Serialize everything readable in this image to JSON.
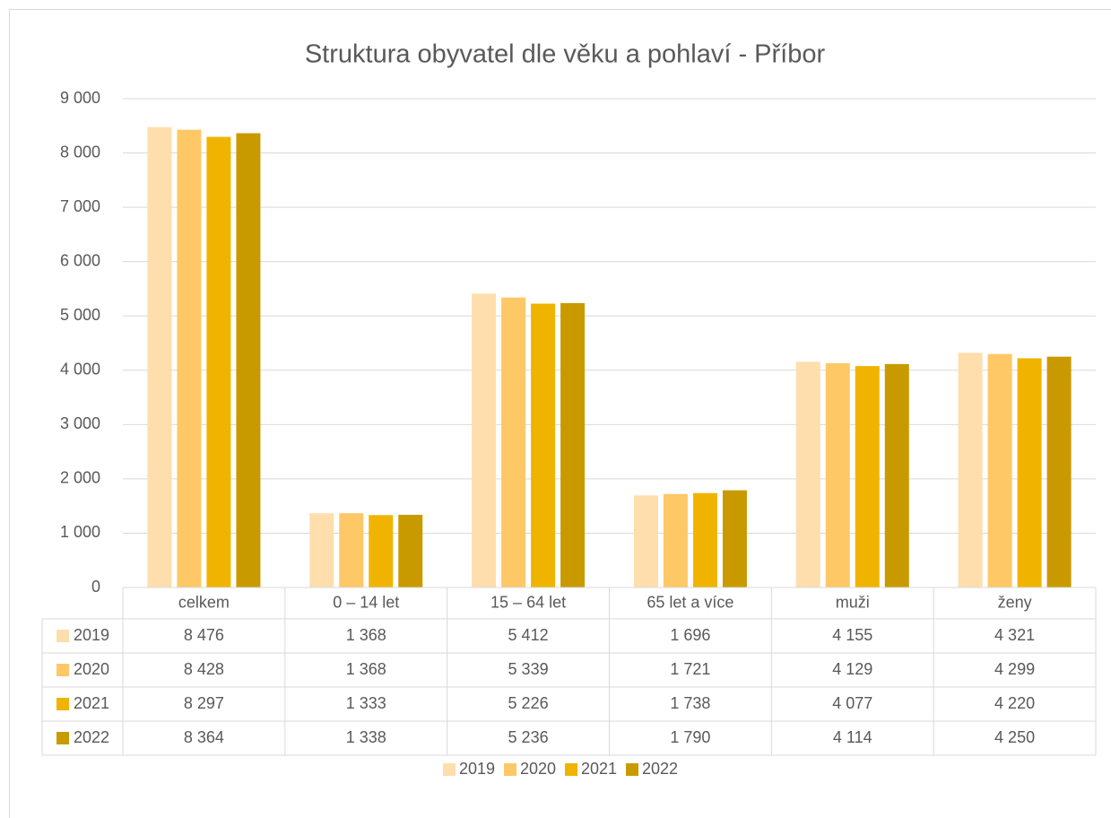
{
  "chart_data": {
    "type": "bar",
    "title": "Struktura obyvatel dle věku a pohlaví - Příbor",
    "categories": [
      "celkem",
      "0 – 14 let",
      "15 – 64 let",
      "65 let a více",
      "muži",
      "ženy"
    ],
    "series": [
      {
        "name": "2019",
        "color": "#fedeac",
        "values": [
          8476,
          1368,
          5412,
          1696,
          4155,
          4321
        ],
        "value_labels": [
          "8 476",
          "1 368",
          "5 412",
          "1 696",
          "4 155",
          "4 321"
        ]
      },
      {
        "name": "2020",
        "color": "#fec866",
        "values": [
          8428,
          1368,
          5339,
          1721,
          4129,
          4299
        ],
        "value_labels": [
          "8 428",
          "1 368",
          "5 339",
          "1 721",
          "4 129",
          "4 299"
        ]
      },
      {
        "name": "2021",
        "color": "#f0b400",
        "values": [
          8297,
          1333,
          5226,
          1738,
          4077,
          4220
        ],
        "value_labels": [
          "8 297",
          "1 333",
          "5 226",
          "1 738",
          "4 077",
          "4 220"
        ]
      },
      {
        "name": "2022",
        "color": "#c99a00",
        "values": [
          8364,
          1338,
          5236,
          1790,
          4114,
          4250
        ],
        "value_labels": [
          "8 364",
          "1 338",
          "5 236",
          "1 790",
          "4 114",
          "4 250"
        ]
      }
    ],
    "ylim": [
      0,
      9000
    ],
    "yticks": [
      0,
      {
        "value": 1000,
        "label": "1 000"
      },
      {
        "value": 2000,
        "label": "2 000"
      },
      {
        "value": 3000,
        "label": "3 000"
      },
      {
        "value": 4000,
        "label": "4 000"
      },
      {
        "value": 5000,
        "label": "5 000"
      },
      {
        "value": 6000,
        "label": "6 000"
      },
      {
        "value": 7000,
        "label": "7 000"
      },
      {
        "value": 8000,
        "label": "8 000"
      },
      {
        "value": 9000,
        "label": "9 000"
      }
    ],
    "grid": true,
    "legend": "bottom"
  }
}
